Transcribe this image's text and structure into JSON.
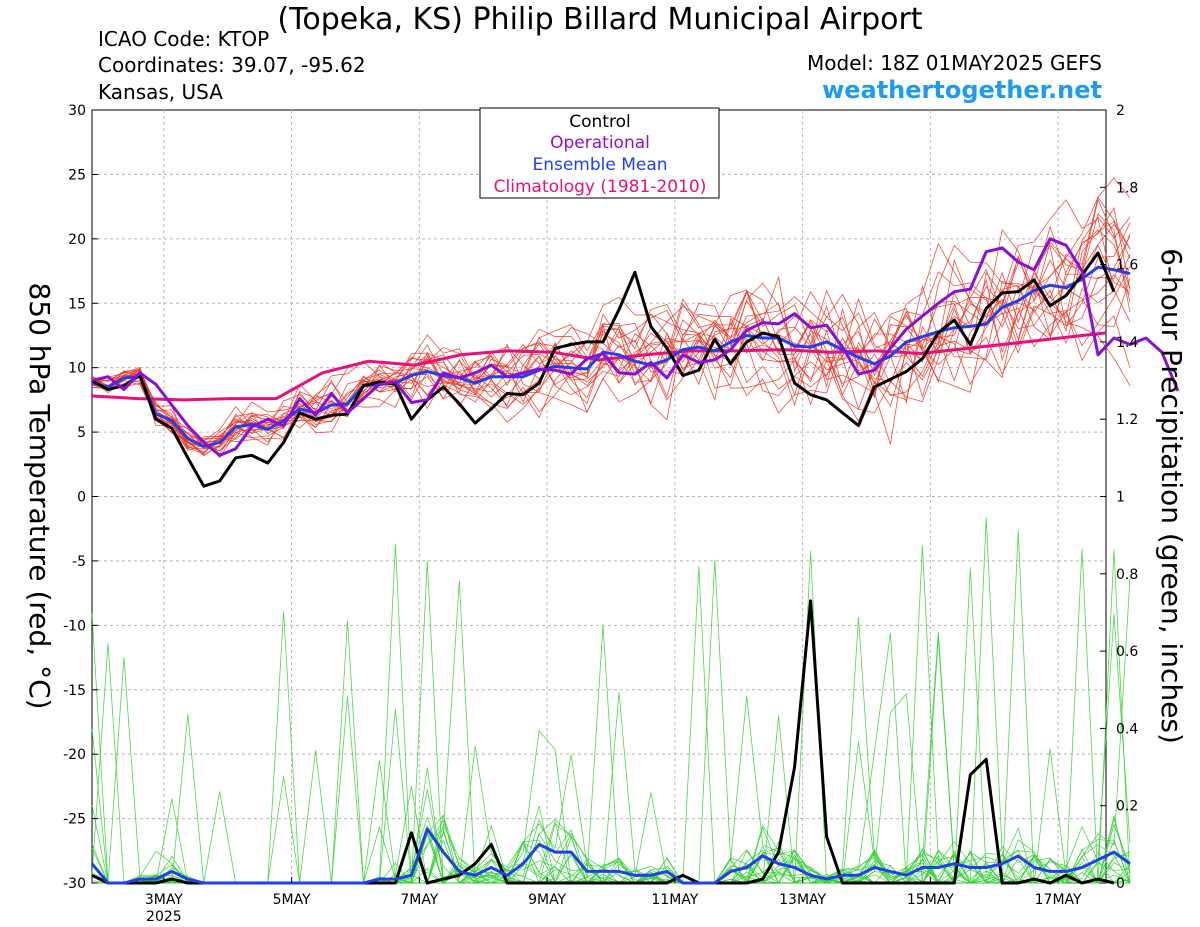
{
  "header": {
    "title": "(Topeka, KS) Philip Billard Municipal Airport",
    "icao": "ICAO Code: KTOP",
    "coordinates": "Coordinates: 39.07, -95.62",
    "region": "Kansas, USA",
    "model": "Model: 18Z 01MAY2025 GEFS",
    "site": "weathertogether.net"
  },
  "colors": {
    "control": "#000000",
    "operational": "#8a10d8",
    "ensemble_mean": "#2040f0",
    "climatology": "#e8107a",
    "members_temp": "#f03020",
    "members_precip": "#30d030",
    "site": "#1c9cf0"
  },
  "chart_data": {
    "type": "line",
    "title": "(Topeka, KS) Philip Billard Municipal Airport",
    "ylabel": "850 hPa Temperature (red, °C)",
    "y2label": "6-hour Precipitation (green, inches)",
    "ylim": [
      -30,
      30
    ],
    "y2lim": [
      0,
      2
    ],
    "yticks": [
      "30",
      "25",
      "20",
      "15",
      "10",
      "5",
      "0",
      "-5",
      "-10",
      "-15",
      "-20",
      "-25",
      "-30"
    ],
    "y2ticks": [
      "2",
      "1.8",
      "1.6",
      "1.4",
      "1.2",
      "1",
      "0.8",
      "0.6",
      "0.4",
      "0.2",
      "0"
    ],
    "xlim": [
      1.875,
      17.75
    ],
    "xticks": [
      {
        "day": 3,
        "label": "3MAY",
        "sub": "2025"
      },
      {
        "day": 5,
        "label": "5MAY",
        "sub": ""
      },
      {
        "day": 7,
        "label": "7MAY",
        "sub": ""
      },
      {
        "day": 9,
        "label": "9MAY",
        "sub": ""
      },
      {
        "day": 11,
        "label": "11MAY",
        "sub": ""
      },
      {
        "day": 13,
        "label": "13MAY",
        "sub": ""
      },
      {
        "day": 15,
        "label": "15MAY",
        "sub": ""
      },
      {
        "day": 17,
        "label": "17MAY",
        "sub": ""
      }
    ],
    "grid": true,
    "legend_position": "top-center",
    "legend": [
      "Control",
      "Operational",
      "Ensemble Mean",
      "Climatology (1981-2010)"
    ],
    "x_start_day": 1.875,
    "x_step_days": 0.25,
    "series": [
      {
        "name": "Control",
        "axis": "temp",
        "values": [
          9,
          8.3,
          8.6,
          9.4,
          6,
          5.3,
          3,
          0.8,
          1.2,
          3,
          3.2,
          2.6,
          4.2,
          6.5,
          6,
          6.3,
          6.4,
          8.6,
          8.9,
          8.7,
          6,
          7.5,
          8.5,
          7.2,
          5.7,
          6.8,
          8,
          7.9,
          8.8,
          11.5,
          11.8,
          12,
          12,
          14.5,
          17.4,
          13.2,
          11.5,
          9.4,
          9.8,
          12.2,
          10.3,
          12,
          12.7,
          12.4,
          8.8,
          7.9,
          7.5,
          6.5,
          5.5,
          8.5,
          9.1,
          9.7,
          10.7,
          12.7,
          13.7,
          11.8,
          14.6,
          15.8,
          15.9,
          16.8,
          14.8,
          15.6,
          17.2,
          18.9,
          15.9
        ]
      },
      {
        "name": "Operational",
        "axis": "temp",
        "values": [
          9,
          9.3,
          8.3,
          9.6,
          8.7,
          7.1,
          5.5,
          4.2,
          3.2,
          3.7,
          5.4,
          6,
          5.5,
          7.6,
          6.3,
          8,
          6.5,
          7.6,
          8.7,
          8.9,
          7.3,
          7.5,
          9.6,
          9.2,
          9.6,
          10.2,
          9.3,
          9.6,
          9.9,
          9.8,
          9.5,
          10.7,
          11.1,
          9.6,
          9.5,
          10.4,
          9.2,
          11,
          10.4,
          10.6,
          11.4,
          12.9,
          13.5,
          13.4,
          14.2,
          13.1,
          13.3,
          11.6,
          9.5,
          9.8,
          11.5,
          13,
          14,
          15,
          15.9,
          16.1,
          19,
          19.3,
          18.2,
          17.6,
          20,
          19.5,
          17.5,
          11,
          12.3,
          11.8,
          12.3,
          11.2,
          8.2
        ]
      },
      {
        "name": "Ensemble Mean",
        "axis": "temp",
        "values": [
          8.8,
          8.5,
          9.2,
          9.3,
          6.4,
          5.9,
          4.5,
          3.9,
          4.2,
          5.4,
          5.6,
          5.2,
          5.9,
          6.8,
          6.5,
          7.1,
          7.2,
          8.6,
          8.7,
          8.8,
          9.4,
          9.7,
          9.4,
          9.2,
          8.8,
          9.3,
          9.3,
          9.3,
          9.8,
          10.1,
          10,
          9.9,
          11.2,
          11,
          10.5,
          10.2,
          10.6,
          11.4,
          11.6,
          11.3,
          12,
          12.5,
          12.3,
          12.3,
          11.7,
          11.6,
          12,
          11.4,
          10.8,
          10.3,
          10.9,
          12,
          12.4,
          12.8,
          13.1,
          13.2,
          13.4,
          14.7,
          15.2,
          16,
          16.4,
          16.2,
          16.9,
          17.8,
          17.6,
          17.3
        ]
      },
      {
        "name": "Climatology (1981-2010)",
        "axis": "temp",
        "values": [
          7.8,
          7.6,
          7.5,
          7.6,
          7.6,
          9.6,
          10.5,
          10.2,
          11,
          11.3,
          11.2,
          10.6,
          11,
          11.3,
          11.3,
          11.4,
          11.2,
          11.3,
          11.1,
          11.5,
          11.9,
          12.3,
          12.7
        ]
      },
      {
        "name": "Control",
        "axis": "precip",
        "values": [
          0.02,
          0,
          0,
          0,
          0,
          0.01,
          0,
          0,
          0,
          0,
          0,
          0,
          0,
          0,
          0,
          0,
          0,
          0,
          0,
          0,
          0.13,
          0,
          0.01,
          0.02,
          0.05,
          0.1,
          0,
          0,
          0,
          0,
          0,
          0,
          0,
          0,
          0,
          0,
          0,
          0.02,
          0,
          0,
          0,
          0,
          0.01,
          0.08,
          0.3,
          0.73,
          0.12,
          0,
          0,
          0,
          0,
          0,
          0,
          0,
          0,
          0.28,
          0.32,
          0,
          0,
          0.01,
          0,
          0.02,
          0,
          0.01,
          0
        ]
      },
      {
        "name": "Ensemble Mean",
        "axis": "precip",
        "values": [
          0.05,
          0,
          0,
          0.01,
          0.01,
          0.03,
          0.01,
          0,
          0,
          0,
          0,
          0,
          0,
          0,
          0,
          0,
          0,
          0,
          0.01,
          0.01,
          0.02,
          0.14,
          0.08,
          0.03,
          0.02,
          0.04,
          0.02,
          0.05,
          0.1,
          0.08,
          0.08,
          0.03,
          0.03,
          0.03,
          0.02,
          0.02,
          0.03,
          0,
          0,
          0,
          0.03,
          0.04,
          0.07,
          0.05,
          0.04,
          0.02,
          0.01,
          0.02,
          0.02,
          0.04,
          0.03,
          0.02,
          0.04,
          0.04,
          0.05,
          0.04,
          0.04,
          0.05,
          0.07,
          0.04,
          0.03,
          0.03,
          0.04,
          0.06,
          0.08,
          0.05
        ]
      }
    ]
  }
}
